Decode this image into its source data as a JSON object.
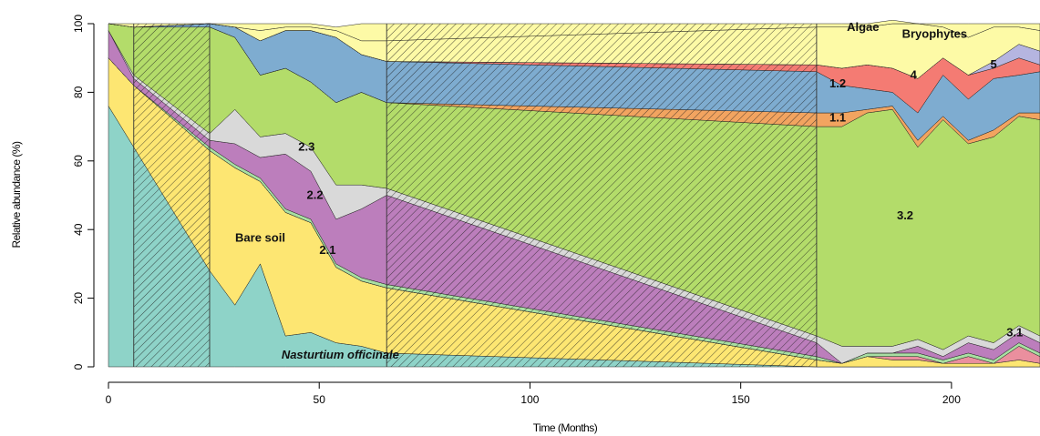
{
  "chart_data": {
    "type": "area",
    "title": "",
    "xlabel": "Time (Months)",
    "ylabel": "Relative abundance (%)",
    "xlim": [
      0,
      221
    ],
    "ylim": [
      0,
      100
    ],
    "x_ticks": [
      "0",
      "50",
      "100",
      "150",
      "200"
    ],
    "y_ticks": [
      "0",
      "20",
      "40",
      "60",
      "80",
      "100"
    ],
    "stacked": true,
    "shaded_periods": [
      [
        6,
        24
      ],
      [
        66,
        168
      ]
    ],
    "x": [
      0,
      6,
      24,
      30,
      36,
      42,
      48,
      54,
      60,
      66,
      168,
      174,
      180,
      186,
      192,
      198,
      204,
      210,
      216,
      221
    ],
    "series": [
      {
        "name": "Nasturtium officinale",
        "color": "#8ed3c8",
        "values": [
          76,
          64,
          28,
          18,
          30,
          9,
          10,
          7,
          6,
          4,
          0,
          0,
          0,
          0,
          0,
          0,
          0,
          0,
          0,
          0
        ]
      },
      {
        "name": "Bare soil",
        "color": "#fde672",
        "values": [
          14,
          18,
          35,
          40,
          24,
          36,
          32,
          22,
          19,
          19,
          2,
          1,
          3,
          2,
          2,
          1,
          1,
          1,
          2,
          1
        ]
      },
      {
        "name": "3.1",
        "color": "#ea8f9e",
        "values": [
          0,
          0,
          0,
          0,
          0,
          0,
          0,
          0,
          0,
          0,
          0,
          0,
          0,
          1,
          1,
          0,
          2,
          0,
          4,
          2
        ]
      },
      {
        "name": "2.1",
        "color": "#a8dfa2",
        "values": [
          0,
          0,
          1,
          1,
          1,
          1,
          1,
          1,
          1,
          1,
          1,
          0,
          1,
          1,
          1,
          1,
          1,
          1,
          1,
          1
        ]
      },
      {
        "name": "2.2",
        "color": "#bc7ebc",
        "values": [
          8,
          2,
          2,
          6,
          6,
          16,
          14,
          13,
          20,
          26,
          4,
          0,
          0,
          0,
          2,
          1,
          3,
          3,
          3,
          3
        ]
      },
      {
        "name": "2.3",
        "color": "#d9d9d9",
        "values": [
          0,
          1,
          2,
          10,
          6,
          6,
          7,
          10,
          7,
          2,
          2,
          5,
          2,
          2,
          2,
          2,
          2,
          2,
          2,
          2
        ]
      },
      {
        "name": "3.2",
        "color": "#b3dc6a",
        "values": [
          2,
          14,
          31,
          21,
          18,
          19,
          19,
          24,
          27,
          25,
          61,
          64,
          68,
          69,
          56,
          67,
          56,
          60,
          61,
          63
        ]
      },
      {
        "name": "1.1",
        "color": "#f2a460",
        "values": [
          0,
          0,
          0,
          0,
          0,
          0,
          0,
          0,
          0,
          0,
          4,
          4,
          1,
          1,
          2,
          1,
          1,
          2,
          1,
          2
        ]
      },
      {
        "name": "1.2",
        "color": "#7eacd0",
        "values": [
          0,
          0,
          1,
          3,
          10,
          11,
          15,
          19,
          11,
          12,
          12,
          8,
          6,
          4,
          8,
          12,
          12,
          15,
          11,
          12
        ]
      },
      {
        "name": "4",
        "color": "#f47b73",
        "values": [
          0,
          0,
          0,
          0,
          0,
          0,
          0,
          0,
          0,
          0,
          2,
          5,
          7,
          7,
          10,
          5,
          7,
          3,
          5,
          2
        ]
      },
      {
        "name": "5",
        "color": "#b5b5e0",
        "values": [
          0,
          0,
          0,
          0,
          0,
          0,
          0,
          0,
          0,
          0,
          0,
          0,
          0,
          0,
          0,
          0,
          0,
          2,
          4,
          4
        ]
      },
      {
        "name": "Bryophytes",
        "color": "#fdfaa6",
        "values": [
          0,
          0,
          0,
          0,
          3,
          1,
          1,
          2,
          4,
          6,
          11,
          12,
          11,
          13,
          16,
          9,
          11,
          10,
          5,
          6
        ]
      },
      {
        "name": "Algae",
        "color": "#fdfaa6",
        "values": [
          0,
          1,
          0,
          1,
          2,
          1,
          1,
          1,
          5,
          5,
          1,
          1,
          1,
          1,
          0,
          1,
          4,
          1,
          1,
          2
        ]
      }
    ]
  }
}
